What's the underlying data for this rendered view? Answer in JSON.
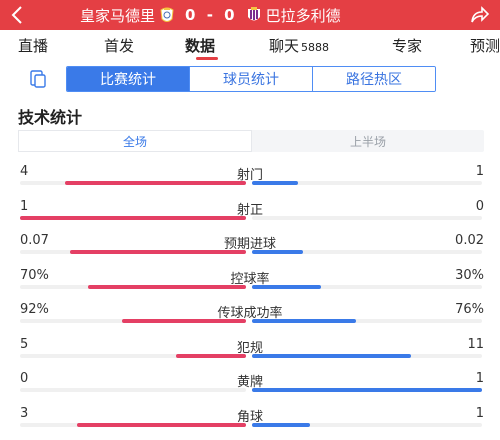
{
  "header": {
    "home_team": "皇家马德里",
    "away_team": "巴拉多利德",
    "home_score": "0",
    "away_score": "0",
    "separator": "-",
    "back_icon": "chevron-left-icon",
    "share_icon": "share-icon",
    "background_color": "#e43f44"
  },
  "nav": {
    "tabs": [
      {
        "label": "直播"
      },
      {
        "label": "首发"
      },
      {
        "label": "数据"
      },
      {
        "label": "聊天",
        "count": "5888"
      },
      {
        "label": "专家"
      },
      {
        "label": "预测"
      }
    ],
    "active": "数据"
  },
  "subtabs": {
    "items": [
      "比赛统计",
      "球员统计",
      "路径热区"
    ],
    "active": "比赛统计",
    "accent_color": "#3a7ae8"
  },
  "section_title": "技术统计",
  "periods": {
    "items": [
      "全场",
      "上半场"
    ],
    "active": "全场"
  },
  "colors": {
    "home": "#e43f64",
    "away": "#3a7ae8"
  },
  "stats": [
    {
      "name": "射门",
      "home": "4",
      "away": "1",
      "home_share": 0.8,
      "away_share": 0.2
    },
    {
      "name": "射正",
      "home": "1",
      "away": "0",
      "home_share": 1.0,
      "away_share": 0.0
    },
    {
      "name": "预期进球",
      "home": "0.07",
      "away": "0.02",
      "home_share": 0.78,
      "away_share": 0.22
    },
    {
      "name": "控球率",
      "home": "70%",
      "away": "30%",
      "home_share": 0.7,
      "away_share": 0.3
    },
    {
      "name": "传球成功率",
      "home": "92%",
      "away": "76%",
      "home_share": 0.55,
      "away_share": 0.45
    },
    {
      "name": "犯规",
      "home": "5",
      "away": "11",
      "home_share": 0.31,
      "away_share": 0.69
    },
    {
      "name": "黄牌",
      "home": "0",
      "away": "1",
      "home_share": 0.0,
      "away_share": 1.0
    },
    {
      "name": "角球",
      "home": "3",
      "away": "1",
      "home_share": 0.75,
      "away_share": 0.25
    }
  ]
}
